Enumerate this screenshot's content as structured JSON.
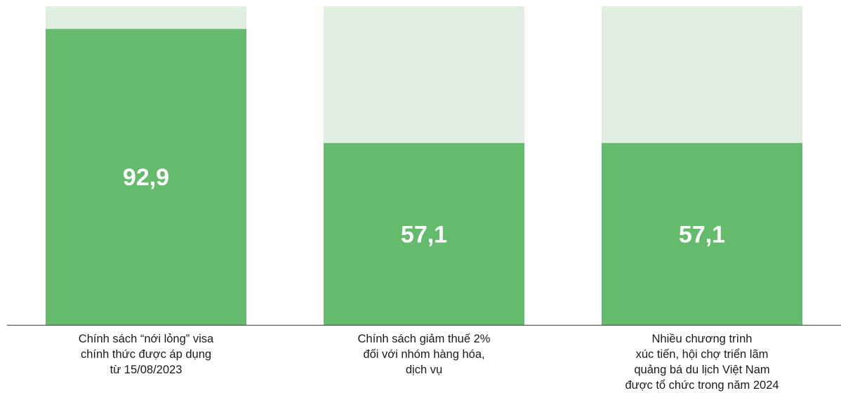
{
  "colors": {
    "bar_fill": "#65bb6c",
    "bar_background": "#e0efe1",
    "value_text": "#ffffff",
    "baseline": "#555555",
    "label_text": "#1a1a1a"
  },
  "chart_data": {
    "type": "bar",
    "stacked_remainder_to": 100,
    "ylim": [
      0,
      100
    ],
    "grid": false,
    "legend": "none",
    "categories": [
      [
        "Chính sách “nới lỏng” visa",
        "chính thức được áp dụng",
        "từ 15/08/2023"
      ],
      [
        "Chính sách giảm thuế 2%",
        "đối với nhóm hàng hóa,",
        "dịch vụ"
      ],
      [
        "Nhiều chương trình",
        "xúc tiến, hội chợ triển lãm",
        "quảng bá du lịch Việt Nam",
        "được tổ chức trong năm 2024"
      ]
    ],
    "values": [
      92.9,
      57.1,
      57.1
    ],
    "value_labels": [
      "92,9",
      "57,1",
      "57,1"
    ]
  }
}
